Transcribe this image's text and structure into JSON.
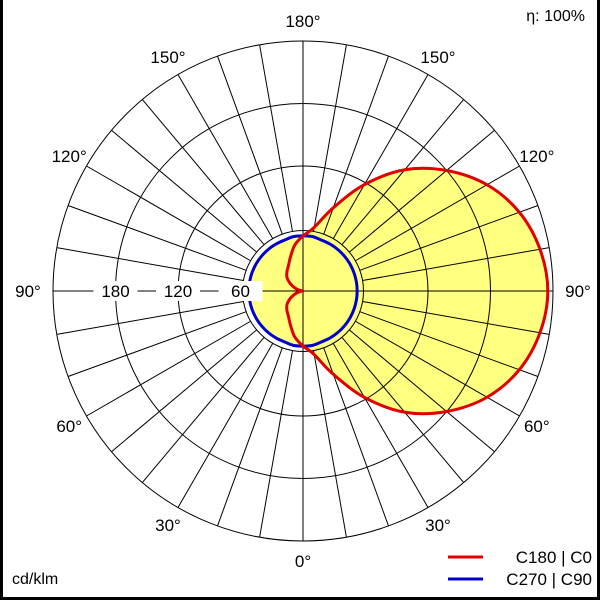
{
  "chart_data": {
    "type": "polar",
    "unit_label": "cd/klm",
    "efficiency_label": "η: 100%",
    "radial_ticks": [
      60,
      120,
      180
    ],
    "radial_max": 240,
    "angle_labels": [
      "0°",
      "30°",
      "60°",
      "90°",
      "120°",
      "150°",
      "180°"
    ],
    "grid": true,
    "legend_placement": "bottom-right",
    "gamma": [
      0,
      10,
      20,
      30,
      40,
      50,
      60,
      70,
      80,
      90,
      100,
      110,
      120,
      130,
      140,
      150,
      160,
      170,
      180
    ],
    "series": [
      {
        "name": "C180 | C0",
        "color": "#e00000",
        "C0": [
          53,
          62,
          85,
          118,
          152,
          180,
          204,
          221,
          231,
          235,
          231,
          221,
          204,
          180,
          152,
          118,
          85,
          62,
          53
        ],
        "C180": [
          53,
          45,
          35,
          28,
          24,
          20,
          14,
          8,
          3,
          0,
          3,
          8,
          14,
          20,
          24,
          28,
          35,
          45,
          53
        ]
      },
      {
        "name": "C270 | C90",
        "color": "#0000cc",
        "C90": [
          53,
          53,
          52,
          52,
          52,
          52,
          52,
          52,
          52,
          52,
          52,
          52,
          52,
          52,
          52,
          52,
          52,
          53,
          53
        ],
        "C270": [
          53,
          53,
          52,
          52,
          52,
          52,
          52,
          52,
          52,
          52,
          52,
          52,
          52,
          52,
          52,
          52,
          52,
          53,
          53
        ]
      }
    ],
    "fill_color": "#ffff80"
  }
}
